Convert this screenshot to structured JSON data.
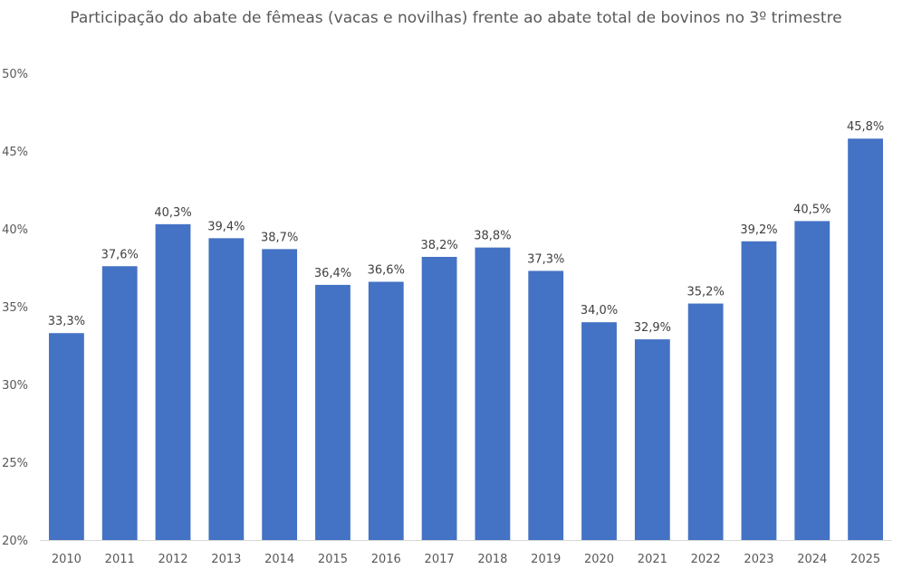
{
  "chart_data": {
    "type": "bar",
    "title": "Participação do abate de fêmeas (vacas e novilhas) frente ao abate total de bovinos no 3º trimestre",
    "xlabel": "",
    "ylabel": "",
    "categories": [
      "2010",
      "2011",
      "2012",
      "2013",
      "2014",
      "2015",
      "2016",
      "2017",
      "2018",
      "2019",
      "2020",
      "2021",
      "2022",
      "2023",
      "2024",
      "2025"
    ],
    "values": [
      33.3,
      37.6,
      40.3,
      39.4,
      38.7,
      36.4,
      36.6,
      38.2,
      38.8,
      37.3,
      34.0,
      32.9,
      35.2,
      39.2,
      40.5,
      45.8
    ],
    "data_labels": [
      "33,3%",
      "37,6%",
      "40,3%",
      "39,4%",
      "38,7%",
      "36,4%",
      "36,6%",
      "38,2%",
      "38,8%",
      "37,3%",
      "34,0%",
      "32,9%",
      "35,2%",
      "39,2%",
      "40,5%",
      "45,8%"
    ],
    "ylim": [
      20,
      50
    ],
    "y_ticks": [
      20,
      25,
      30,
      35,
      40,
      45,
      50
    ],
    "y_tick_labels": [
      "20%",
      "25%",
      "30%",
      "35%",
      "40%",
      "45%",
      "50%"
    ],
    "grid": false,
    "legend": "none",
    "bar_color": "#4472C4"
  }
}
